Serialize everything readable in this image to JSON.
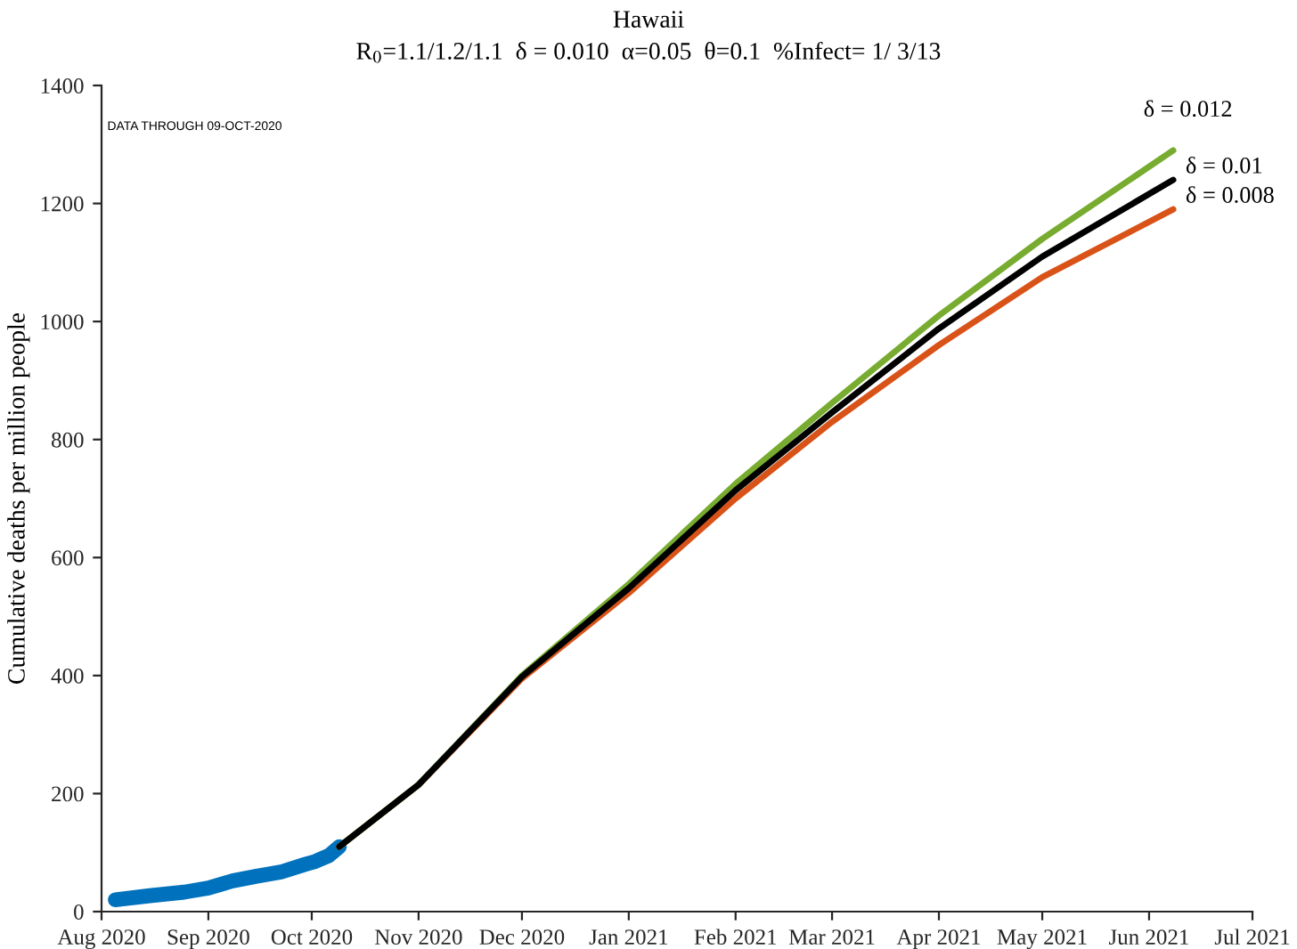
{
  "chart_data": {
    "type": "line",
    "title": "Hawaii",
    "subtitle": "R$_{0}$=1.1/1.2/1.1  δ = 0.010  α=0.05  θ=0.1  %Infect= 1/ 3/13",
    "ylabel": "Cumulative deaths per million people",
    "annotations": [
      "DATA THROUGH 09-OCT-2020"
    ],
    "series": [
      {
        "color": "#0072bd",
        "x": [
          "2020-08-05",
          "2020-08-15",
          "2020-08-25",
          "2020-09-01",
          "2020-09-08",
          "2020-09-15",
          "2020-09-22",
          "2020-09-29",
          "2020-10-02",
          "2020-10-06",
          "2020-10-09"
        ],
        "values": [
          20,
          27,
          33,
          40,
          52,
          60,
          67,
          80,
          85,
          95,
          110
        ]
      },
      {
        "name": "δ = 0.008",
        "color": "#d95319",
        "x": [
          "2020-10-09",
          "2020-11-01",
          "2020-12-01",
          "2021-01-01",
          "2021-02-01",
          "2021-03-01",
          "2021-04-01",
          "2021-05-01",
          "2021-06-08"
        ],
        "values": [
          110,
          215,
          395,
          540,
          700,
          830,
          960,
          1075,
          1190
        ]
      },
      {
        "name": "δ = 0.012",
        "color": "#77ac30",
        "x": [
          "2020-10-09",
          "2020-11-01",
          "2020-12-01",
          "2021-01-01",
          "2021-02-01",
          "2021-03-01",
          "2021-04-01",
          "2021-05-01",
          "2021-06-08"
        ],
        "values": [
          110,
          215,
          400,
          555,
          725,
          862,
          1010,
          1140,
          1290
        ]
      },
      {
        "name": "δ = 0.01",
        "color": "#000000",
        "x": [
          "2020-10-09",
          "2020-11-01",
          "2020-12-01",
          "2021-01-01",
          "2021-02-01",
          "2021-03-01",
          "2021-04-01",
          "2021-05-01",
          "2021-06-08"
        ],
        "values": [
          110,
          215,
          398,
          548,
          714,
          846,
          988,
          1110,
          1240
        ]
      }
    ],
    "xlim": [
      "2020-08",
      "2021-07"
    ],
    "xticks": [
      {
        "value": "2020-08",
        "label": "Aug 2020"
      },
      {
        "value": "2020-09",
        "label": "Sep 2020"
      },
      {
        "value": "2020-10",
        "label": "Oct 2020"
      },
      {
        "value": "2020-11",
        "label": "Nov 2020"
      },
      {
        "value": "2020-12",
        "label": "Dec 2020"
      },
      {
        "value": "2021-01",
        "label": "Jan 2021"
      },
      {
        "value": "2021-02",
        "label": "Feb 2021"
      },
      {
        "value": "2021-03",
        "label": "Mar 2021"
      },
      {
        "value": "2021-04",
        "label": "Apr 2021"
      },
      {
        "value": "2021-05",
        "label": "May 2021"
      },
      {
        "value": "2021-06",
        "label": "Jun 2021"
      },
      {
        "value": "2021-07",
        "label": "Jul 2021"
      }
    ],
    "ylim": [
      0,
      1400
    ],
    "yticks": [
      0,
      200,
      400,
      600,
      800,
      1000,
      1200,
      1400
    ],
    "grid": false,
    "legend": false,
    "line_style": "solid",
    "marker": "none"
  }
}
